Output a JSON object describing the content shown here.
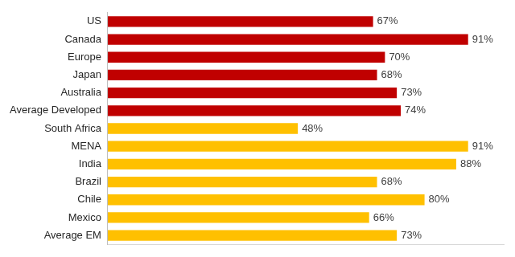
{
  "chart_data": {
    "type": "bar",
    "orientation": "horizontal",
    "categories": [
      "US",
      "Canada",
      "Europe",
      "Japan",
      "Australia",
      "Average Developed",
      "South Africa",
      "MENA",
      "India",
      "Brazil",
      "Chile",
      "Mexico",
      "Average EM"
    ],
    "values": [
      67,
      91,
      70,
      68,
      73,
      74,
      48,
      91,
      88,
      68,
      80,
      66,
      73
    ],
    "value_labels": [
      "67%",
      "91%",
      "70%",
      "68%",
      "73%",
      "74%",
      "48%",
      "91%",
      "88%",
      "68%",
      "80%",
      "66%",
      "73%"
    ],
    "colors": [
      "#c00000",
      "#c00000",
      "#c00000",
      "#c00000",
      "#c00000",
      "#c00000",
      "#ffc000",
      "#ffc000",
      "#ffc000",
      "#ffc000",
      "#ffc000",
      "#ffc000",
      "#ffc000"
    ],
    "xlim": [
      0,
      100
    ],
    "data_labels": true,
    "tick_labels": "y",
    "grid": false
  }
}
